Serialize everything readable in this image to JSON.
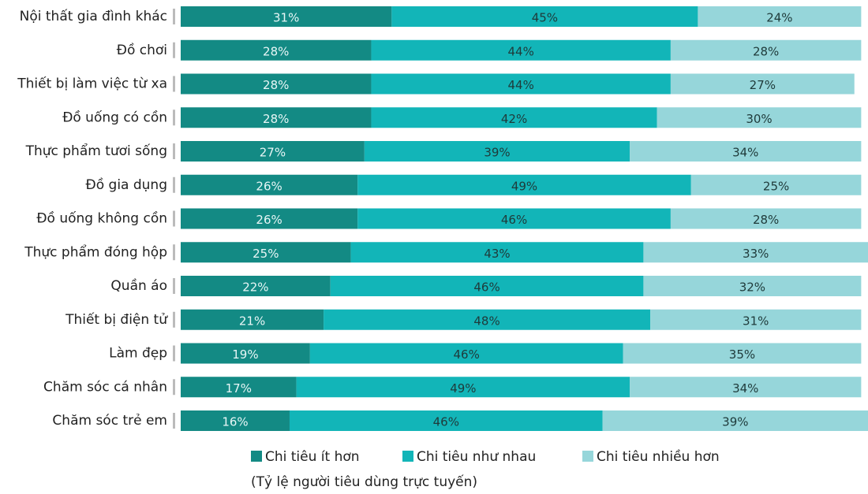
{
  "chart_data": {
    "type": "stacked_barh",
    "categories": [
      "Nội thất gia đình khác",
      "Đồ chơi",
      "Thiết bị làm việc từ xa",
      "Đồ uống có cồn",
      "Thực phẩm tươi sống",
      "Đồ gia dụng",
      "Đồ uống không cồn",
      "Thực phẩm đóng hộp",
      "Quần áo",
      "Thiết bị điện tử",
      "Làm đẹp",
      "Chăm sóc cá nhân",
      "Chăm sóc trẻ em"
    ],
    "series": [
      {
        "name": "Chi tiêu ít hơn",
        "color": "#138a84",
        "values": [
          31,
          28,
          28,
          28,
          27,
          26,
          26,
          25,
          22,
          21,
          19,
          17,
          16
        ],
        "value_labels": [
          "31%",
          "28%",
          "28%",
          "28%",
          "27%",
          "26%",
          "26%",
          "25%",
          "22%",
          "21%",
          "19%",
          "17%",
          "16%"
        ]
      },
      {
        "name": "Chi tiêu như nhau",
        "color": "#12b5b8",
        "values": [
          45,
          44,
          44,
          42,
          39,
          49,
          46,
          43,
          46,
          48,
          46,
          49,
          46
        ],
        "value_labels": [
          "45%",
          "44%",
          "44%",
          "42%",
          "39%",
          "49%",
          "46%",
          "43%",
          "46%",
          "48%",
          "46%",
          "49%",
          "46%"
        ]
      },
      {
        "name": "Chi tiêu nhiều hơn",
        "color": "#96d6da",
        "values": [
          24,
          28,
          27,
          30,
          34,
          25,
          28,
          33,
          32,
          31,
          35,
          34,
          39
        ],
        "value_labels": [
          "24%",
          "28%",
          "27%",
          "30%",
          "34%",
          "25%",
          "28%",
          "33%",
          "32%",
          "31%",
          "35%",
          "34%",
          "39%"
        ]
      }
    ],
    "xlim": [
      0,
      101
    ],
    "note": "(Tỷ lệ người tiêu dùng trực tuyến)"
  }
}
